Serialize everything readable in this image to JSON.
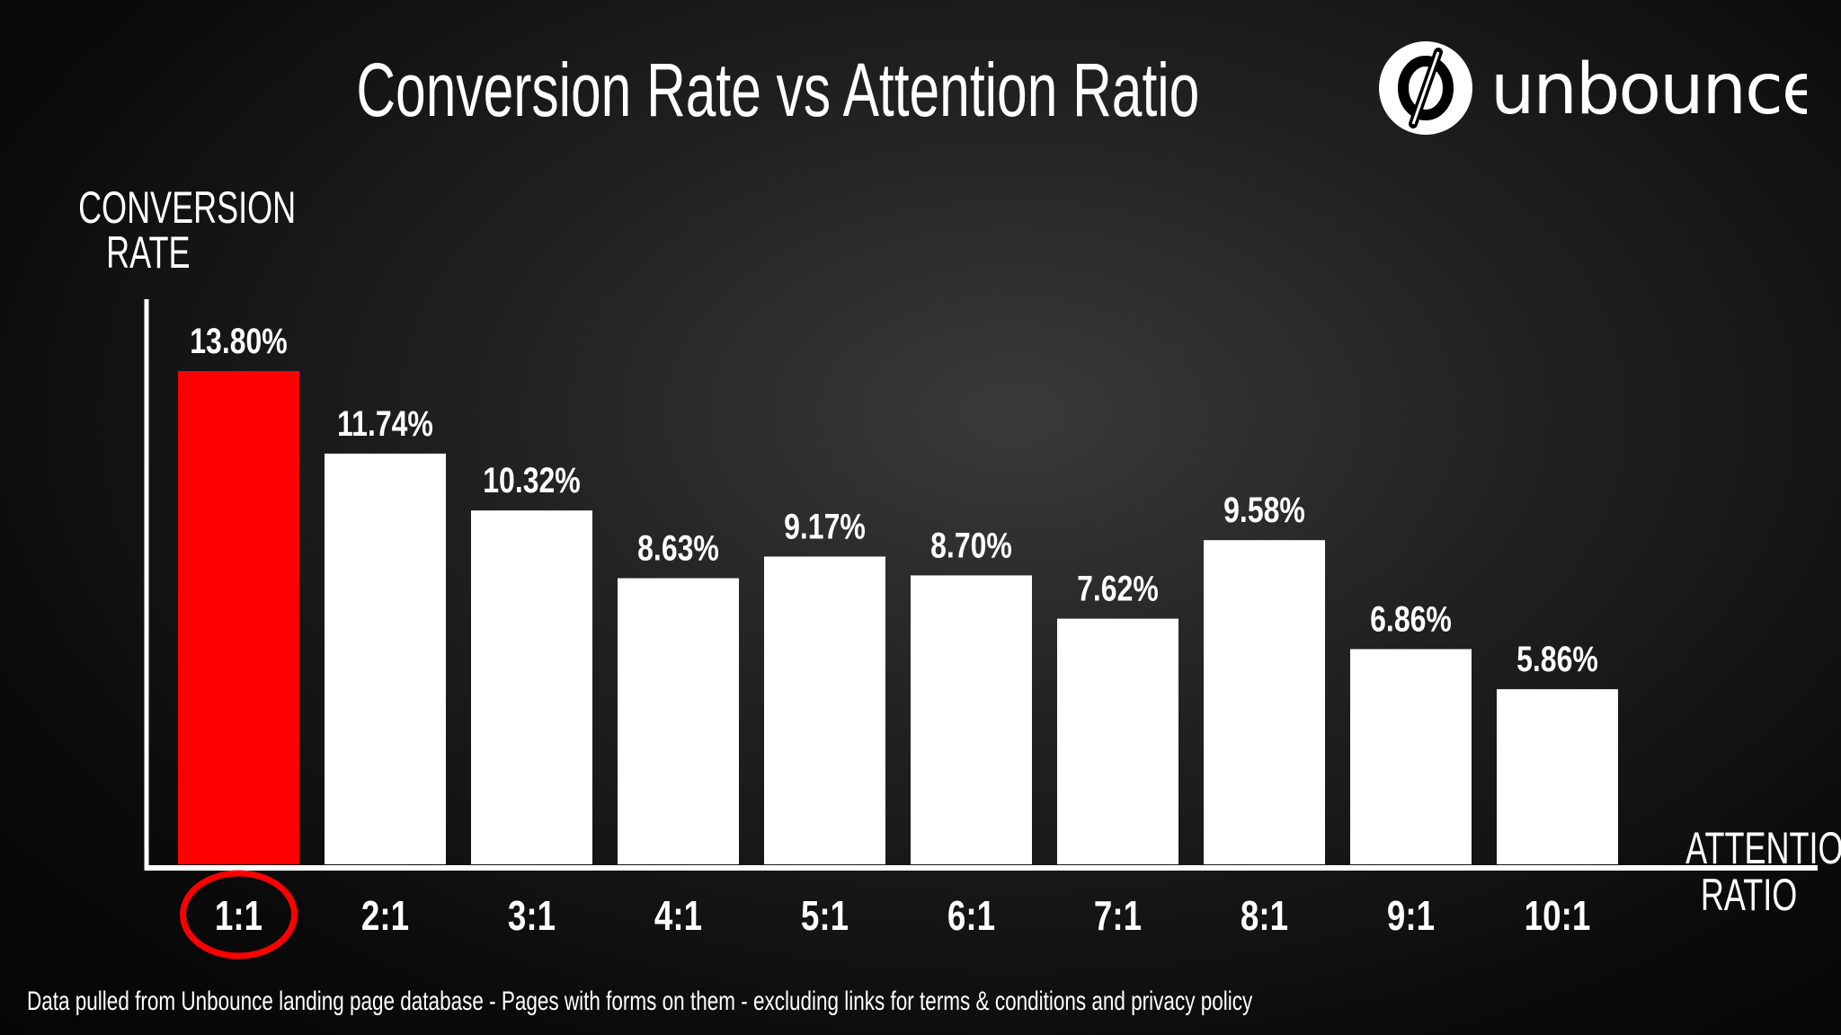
{
  "title": "Conversion Rate vs Attention Ratio",
  "logo": {
    "text": "unbounce"
  },
  "footer": "Data pulled from Unbounce landing page database - Pages with forms on them - excluding links for terms & conditions and privacy policy",
  "chart_data": {
    "type": "bar",
    "title": "Conversion Rate vs Attention Ratio",
    "ylabel": [
      "CONVERSION",
      "RATE"
    ],
    "xlabel": [
      "ATTENTION",
      "RATIO"
    ],
    "categories": [
      "1:1",
      "2:1",
      "3:1",
      "4:1",
      "5:1",
      "6:1",
      "7:1",
      "8:1",
      "9:1",
      "10:1"
    ],
    "values": [
      13.8,
      11.74,
      10.32,
      8.63,
      9.17,
      8.7,
      7.62,
      9.58,
      6.86,
      5.86
    ],
    "value_labels": [
      "13.80%",
      "11.74%",
      "10.32%",
      "8.63%",
      "9.17%",
      "8.70%",
      "7.62%",
      "9.58%",
      "6.86%",
      "5.86%"
    ],
    "ylim": [
      1.4,
      14.5
    ],
    "grid": false,
    "highlight": {
      "category": "1:1",
      "color": "#ff0000",
      "circled": true
    },
    "bar_color": "#ffffff",
    "axis_color": "#ffffff"
  }
}
